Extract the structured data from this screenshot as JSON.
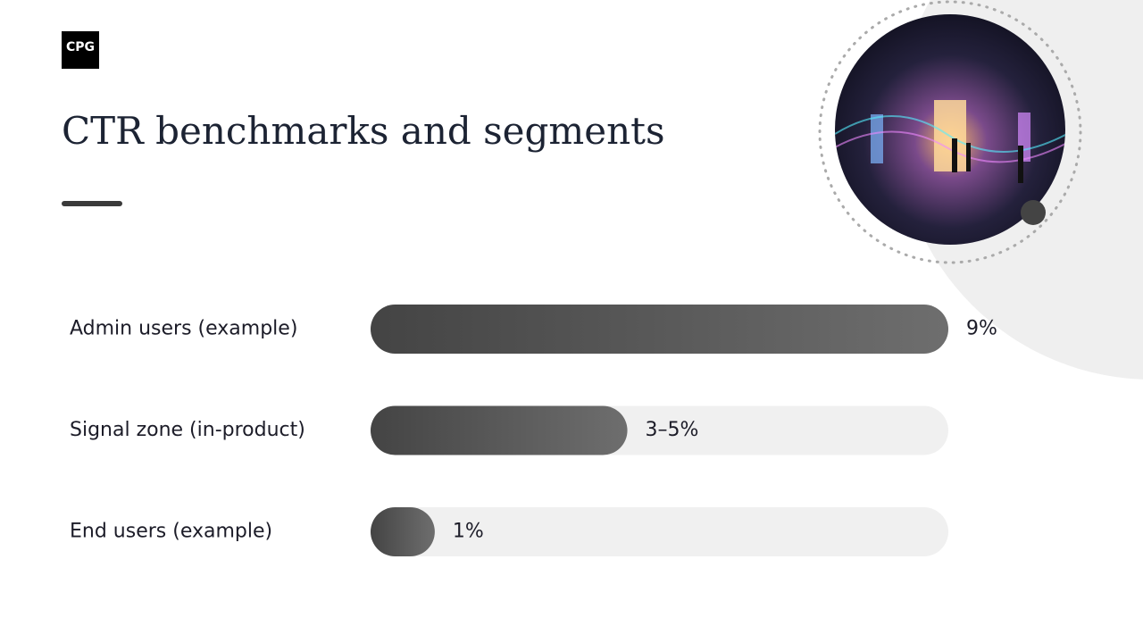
{
  "logo": "CPG",
  "chart_data": {
    "type": "bar",
    "orientation": "horizontal",
    "title": "CTR benchmarks and segments",
    "categories": [
      "Admin users (example)",
      "Signal zone (in-product)",
      "End users (example)"
    ],
    "values": [
      9,
      4,
      1
    ],
    "value_labels": [
      "9%",
      "3–5%",
      "1%"
    ],
    "xlim": [
      0,
      9
    ]
  }
}
